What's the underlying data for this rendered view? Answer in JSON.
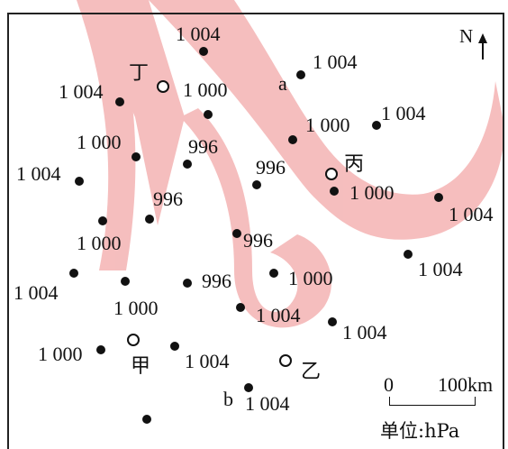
{
  "north_label": "N",
  "scale": {
    "zero": "0",
    "distance": "100km"
  },
  "unit": "单位:hPa",
  "cities": {
    "ding": "丁",
    "bing": "丙",
    "yi": "乙",
    "jia": "甲"
  },
  "points": {
    "a": "a",
    "b": "b"
  },
  "pressures": {
    "p1": "1 004",
    "p2": "1 004",
    "p3": "1 004",
    "p4": "1 000",
    "p5": "1 004",
    "p6": "1 000",
    "p7": "996",
    "p8": "1 000",
    "p9": "1 004",
    "p10": "996",
    "p11": "996",
    "p12": "1 000",
    "p13": "1 004",
    "p14": "996",
    "p15": "1 000",
    "p16": "1 004",
    "p17": "1 004",
    "p18": "996",
    "p19": "1 000",
    "p20": "1 000",
    "p21": "1 004",
    "p22": "1 004",
    "p23": "1 000",
    "p24": "1 004",
    "p25": "1 004"
  },
  "colors": {
    "watermark": "#f4b3b3",
    "ink": "#111111"
  }
}
